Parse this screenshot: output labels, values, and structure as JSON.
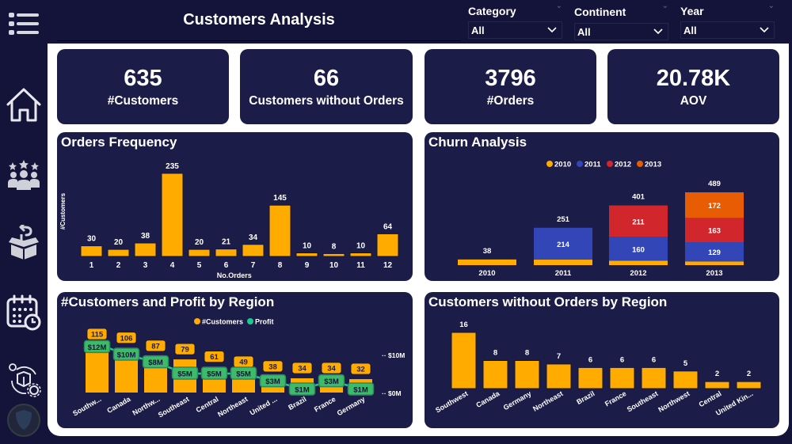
{
  "header": {
    "title": "Customers Analysis"
  },
  "filters": [
    {
      "label": "Category",
      "value": "All"
    },
    {
      "label": "Continent",
      "value": "All"
    },
    {
      "label": "Year",
      "value": "All"
    }
  ],
  "sidebar": {
    "items": [
      {
        "name": "menu",
        "icon": "menu-list-icon"
      },
      {
        "name": "home",
        "icon": "home-icon"
      },
      {
        "name": "customers",
        "icon": "customers-stars-icon"
      },
      {
        "name": "returns",
        "icon": "return-box-icon"
      },
      {
        "name": "calendar",
        "icon": "calendar-clock-icon"
      },
      {
        "name": "operations",
        "icon": "product-cycle-icon"
      }
    ]
  },
  "kpis": [
    {
      "value": "635",
      "label": "#Customers"
    },
    {
      "value": "66",
      "label": "Customers without Orders"
    },
    {
      "value": "3796",
      "label": "#Orders"
    },
    {
      "value": "20.78K",
      "label": "AOV"
    }
  ],
  "colors": {
    "accent": "#ffab00",
    "y2010": "#ffab00",
    "y2011": "#3346b8",
    "y2012": "#d0262c",
    "y2013": "#e85d04",
    "profit": "#1ec98f",
    "profit_label_bg": "#3dba6a",
    "card_bg": "#1c1c48"
  },
  "chart_data": [
    {
      "id": "orders_frequency",
      "type": "bar",
      "title": "Orders Frequency",
      "xlabel": "No.Orders",
      "ylabel": "#Customers",
      "categories": [
        "1",
        "2",
        "3",
        "4",
        "5",
        "6",
        "7",
        "8",
        "9",
        "10",
        "11",
        "12"
      ],
      "values": [
        30,
        20,
        38,
        235,
        20,
        21,
        34,
        145,
        10,
        8,
        10,
        64
      ],
      "ylim": [
        0,
        235
      ]
    },
    {
      "id": "churn_analysis",
      "type": "bar",
      "stacked": true,
      "title": "Churn Analysis",
      "legend": [
        "2010",
        "2011",
        "2012",
        "2013"
      ],
      "legend_position": "top-center",
      "categories": [
        "2010",
        "2011",
        "2012",
        "2013"
      ],
      "series": [
        {
          "name": "2010",
          "values": [
            38,
            37,
            30,
            25
          ]
        },
        {
          "name": "2011",
          "values": [
            0,
            214,
            160,
            129
          ]
        },
        {
          "name": "2012",
          "values": [
            0,
            0,
            211,
            163
          ]
        },
        {
          "name": "2013",
          "values": [
            0,
            0,
            0,
            172
          ]
        }
      ],
      "totals": [
        38,
        251,
        401,
        489
      ],
      "segment_labels": [
        [],
        [
          "214"
        ],
        [
          "160",
          "211"
        ],
        [
          "129",
          "163",
          "172"
        ]
      ]
    },
    {
      "id": "customers_profit_region",
      "type": "bar",
      "combo_line": true,
      "title": "#Customers and Profit by Region",
      "legend": [
        "#Customers",
        "Profit"
      ],
      "legend_position": "top-center",
      "categories": [
        "Southw...",
        "Canada",
        "Northw...",
        "Southeast",
        "Central",
        "Northeast",
        "United ...",
        "Brazil",
        "France",
        "Germany"
      ],
      "series": [
        {
          "name": "#Customers",
          "values": [
            115,
            106,
            87,
            79,
            61,
            49,
            38,
            34,
            34,
            32
          ]
        },
        {
          "name": "Profit",
          "values": [
            12,
            10,
            8,
            5,
            5,
            5,
            3,
            1,
            3,
            1
          ],
          "unit": "$M"
        }
      ],
      "profit_labels": [
        "$12M",
        "$10M",
        "$8M",
        "$5M",
        "$5M",
        "$5M",
        "$3M",
        "$1M",
        "$3M",
        "$1M"
      ],
      "y2_ticks": [
        "$10M",
        "$0M"
      ],
      "y2lim": [
        0,
        10
      ]
    },
    {
      "id": "customers_without_orders_region",
      "type": "bar",
      "title": "Customers without Orders by Region",
      "categories": [
        "Southwest",
        "Canada",
        "Germany",
        "Northeast",
        "Brazil",
        "France",
        "Southeast",
        "Northwest",
        "Central",
        "United Kin..."
      ],
      "values": [
        16,
        8,
        8,
        7,
        6,
        6,
        6,
        5,
        2,
        2
      ],
      "ylim": [
        0,
        16
      ]
    }
  ]
}
